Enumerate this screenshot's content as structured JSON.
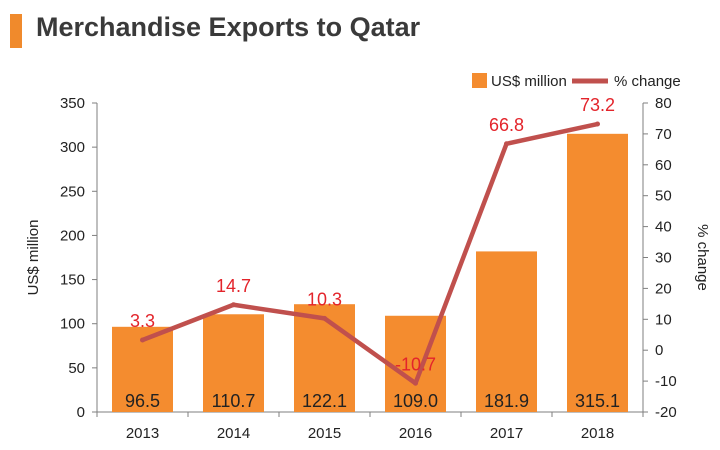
{
  "title": "Merchandise Exports to Qatar",
  "colors": {
    "bar": "#f48c2f",
    "line": "#c0504d",
    "label_red": "#e3242b",
    "axis": "#7f7f7f",
    "text": "#222222"
  },
  "chart_data": {
    "type": "bar",
    "categories": [
      "2013",
      "2014",
      "2015",
      "2016",
      "2017",
      "2018"
    ],
    "series": [
      {
        "name": "US$ million",
        "type": "bar",
        "axis": "left",
        "values": [
          96.5,
          110.7,
          122.1,
          109.0,
          181.9,
          315.1
        ],
        "labels": [
          "96.5",
          "110.7",
          "122.1",
          "109.0",
          "181.9",
          "315.1"
        ]
      },
      {
        "name": "% change",
        "type": "line",
        "axis": "right",
        "values": [
          3.3,
          14.7,
          10.3,
          -10.7,
          66.8,
          73.2
        ],
        "labels": [
          "3.3",
          "14.7",
          "10.3",
          "-10.7",
          "66.8",
          "73.2"
        ]
      }
    ],
    "ylabel": "US$ million",
    "ylabel_right": "% change",
    "ylim": [
      0,
      350
    ],
    "yticks": [
      0,
      50,
      100,
      150,
      200,
      250,
      300,
      350
    ],
    "ylim_right": [
      -20,
      80
    ],
    "yticks_right": [
      -20,
      -10,
      0,
      10,
      20,
      30,
      40,
      50,
      60,
      70,
      80
    ],
    "legend_position": "top-right",
    "grid": false
  }
}
